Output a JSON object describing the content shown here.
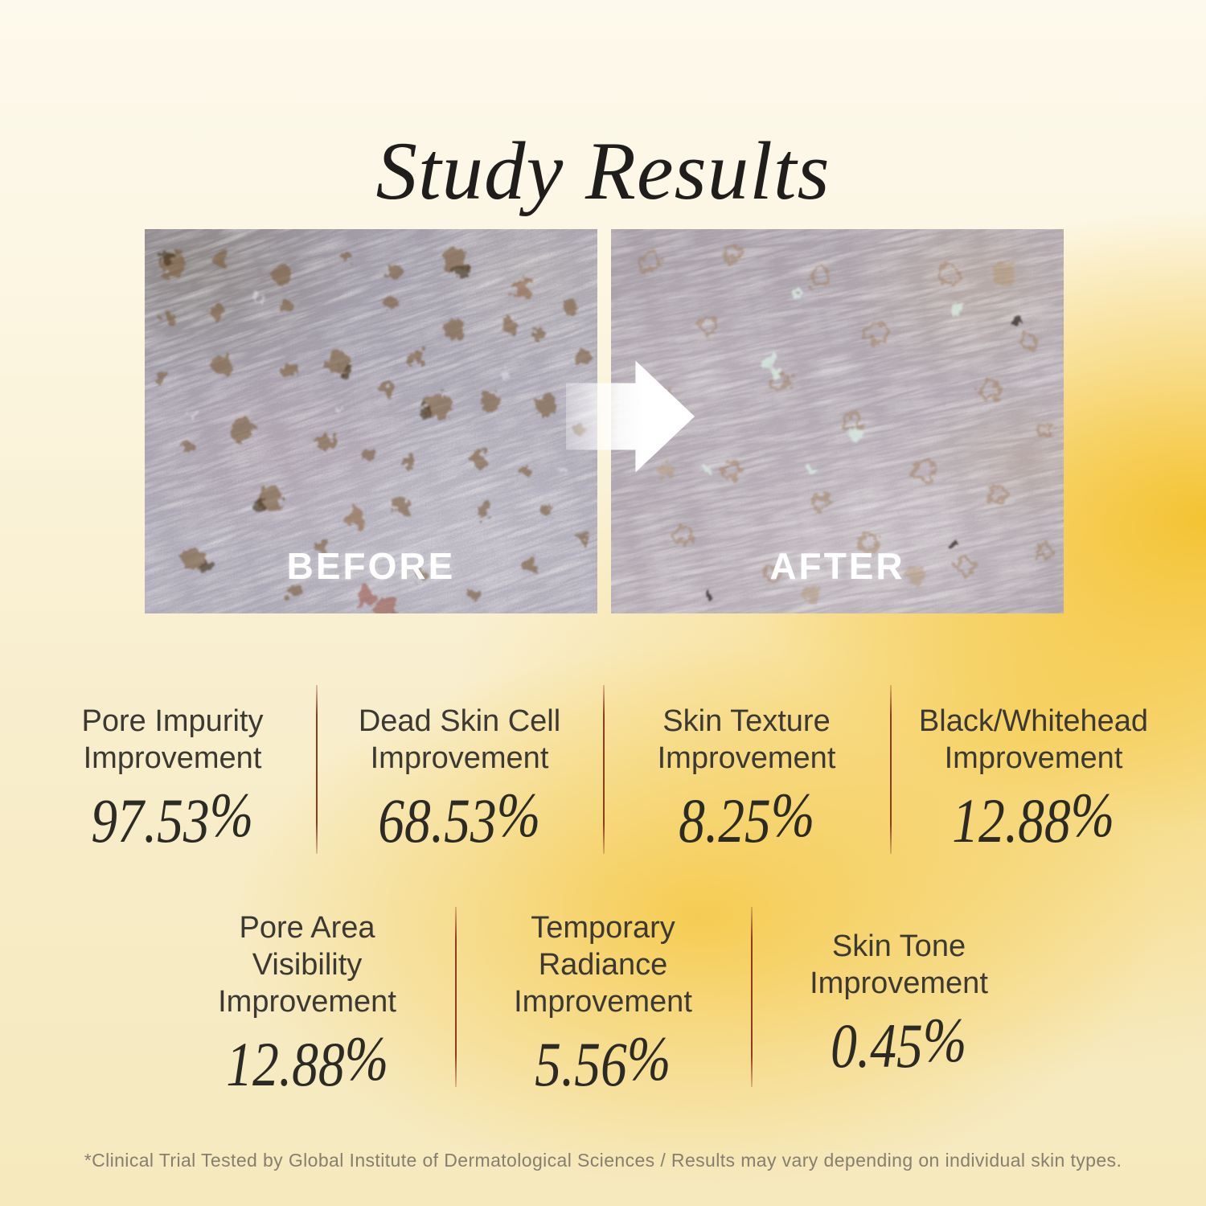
{
  "title": "Study Results",
  "comparison": {
    "before_label": "BEFORE",
    "after_label": "AFTER"
  },
  "stats_row1": [
    {
      "label": "Pore Impurity Improvement",
      "value": "97.53%"
    },
    {
      "label": "Dead Skin Cell Improvement",
      "value": "68.53%"
    },
    {
      "label": "Skin Texture Improvement",
      "value": "8.25%"
    },
    {
      "label": "Black/Whitehead Improvement",
      "value": "12.88%"
    }
  ],
  "stats_row2": [
    {
      "label": "Pore Area Visibility Improvement",
      "value": "12.88%"
    },
    {
      "label": "Temporary Radiance Improvement",
      "value": "5.56%"
    },
    {
      "label": "Skin Tone Improvement",
      "value": "0.45%"
    }
  ],
  "footer": "*Clinical Trial Tested by Global Institute of Dermatological Sciences / Results may vary depending on individual skin types.",
  "colors": {
    "background_gold": "#F5C748",
    "background_cream": "#FDF9EC",
    "divider_red": "#8D3A20",
    "title_text": "#1F1E1C",
    "label_text": "#3C3933",
    "value_text": "#2C2A25",
    "footer_text": "#857F70",
    "overlay_label_text": "#FFFFFF"
  }
}
